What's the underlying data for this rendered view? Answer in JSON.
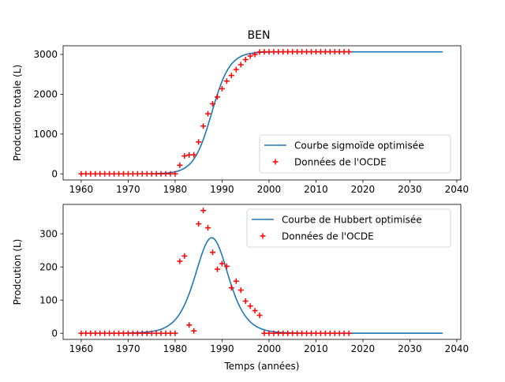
{
  "figure_title": "BEN",
  "chart_data": [
    {
      "type": "line",
      "title": "BEN",
      "xlabel": "",
      "ylabel": "Prodcution totale (L)",
      "xlim": [
        1956.15,
        2040.85
      ],
      "ylim": [
        -153,
        3217
      ],
      "xticks": [
        1960,
        1970,
        1980,
        1990,
        2000,
        2010,
        2020,
        2030,
        2040
      ],
      "yticks": [
        0,
        1000,
        2000,
        3000
      ],
      "legend_position": "lower right",
      "series": [
        {
          "name": "Courbe sigmoïde optimisée",
          "kind": "line",
          "color": "#1f77b4",
          "model": {
            "form": "logistic",
            "K": 3065,
            "x0": 1987.8,
            "k": 0.52
          },
          "x_range": [
            1960,
            2037
          ]
        },
        {
          "name": "Données de l'OCDE",
          "kind": "scatter",
          "marker": "+",
          "color": "#ff0000",
          "x": [
            1960,
            1961,
            1962,
            1963,
            1964,
            1965,
            1966,
            1967,
            1968,
            1969,
            1970,
            1971,
            1972,
            1973,
            1974,
            1975,
            1976,
            1977,
            1978,
            1979,
            1980,
            1981,
            1982,
            1983,
            1984,
            1985,
            1986,
            1987,
            1988,
            1989,
            1990,
            1991,
            1992,
            1993,
            1994,
            1995,
            1996,
            1997,
            1998,
            1999,
            2000,
            2001,
            2002,
            2003,
            2004,
            2005,
            2006,
            2007,
            2008,
            2009,
            2010,
            2011,
            2012,
            2013,
            2014,
            2015,
            2016,
            2017
          ],
          "y": [
            0,
            0,
            0,
            0,
            0,
            0,
            0,
            0,
            0,
            0,
            0,
            0,
            0,
            0,
            0,
            0,
            0,
            0,
            0,
            0,
            0,
            217,
            450,
            475,
            480,
            800,
            1200,
            1510,
            1760,
            1930,
            2140,
            2330,
            2470,
            2620,
            2740,
            2870,
            2960,
            3000,
            3060,
            3065,
            3065,
            3065,
            3065,
            3065,
            3065,
            3065,
            3065,
            3065,
            3065,
            3065,
            3065,
            3065,
            3065,
            3065,
            3065,
            3065,
            3065,
            3065
          ]
        }
      ]
    },
    {
      "type": "line",
      "title": "",
      "xlabel": "Temps (années)",
      "ylabel": "Prodcution (L)",
      "xlim": [
        1956.15,
        2040.85
      ],
      "ylim": [
        -18.5,
        388.5
      ],
      "xticks": [
        1960,
        1970,
        1980,
        1990,
        2000,
        2010,
        2020,
        2030,
        2040
      ],
      "yticks": [
        0,
        100,
        200,
        300
      ],
      "legend_position": "upper right",
      "series": [
        {
          "name": "Courbe de Hubbert optimisée",
          "kind": "line",
          "color": "#1f77b4",
          "model": {
            "form": "hubbert",
            "peak": 288,
            "x0": 1987.8,
            "k": 0.42
          },
          "x_range": [
            1960,
            2037
          ]
        },
        {
          "name": "Données de l'OCDE",
          "kind": "scatter",
          "marker": "+",
          "color": "#ff0000",
          "x": [
            1960,
            1961,
            1962,
            1963,
            1964,
            1965,
            1966,
            1967,
            1968,
            1969,
            1970,
            1971,
            1972,
            1973,
            1974,
            1975,
            1976,
            1977,
            1978,
            1979,
            1980,
            1981,
            1982,
            1983,
            1984,
            1985,
            1986,
            1987,
            1988,
            1989,
            1990,
            1991,
            1992,
            1993,
            1994,
            1995,
            1996,
            1997,
            1998,
            1999,
            2000,
            2001,
            2002,
            2003,
            2004,
            2005,
            2006,
            2007,
            2008,
            2009,
            2010,
            2011,
            2012,
            2013,
            2014,
            2015,
            2016,
            2017
          ],
          "y": [
            0,
            0,
            0,
            0,
            0,
            0,
            0,
            0,
            0,
            0,
            0,
            0,
            0,
            0,
            0,
            0,
            0,
            0,
            0,
            0,
            0,
            217,
            233,
            25,
            7,
            330,
            370,
            318,
            244,
            193,
            210,
            202,
            137,
            157,
            130,
            97,
            82,
            68,
            54,
            0,
            0,
            0,
            0,
            0,
            0,
            0,
            0,
            0,
            0,
            0,
            0,
            0,
            0,
            0,
            0,
            0,
            0,
            0
          ]
        }
      ]
    }
  ]
}
